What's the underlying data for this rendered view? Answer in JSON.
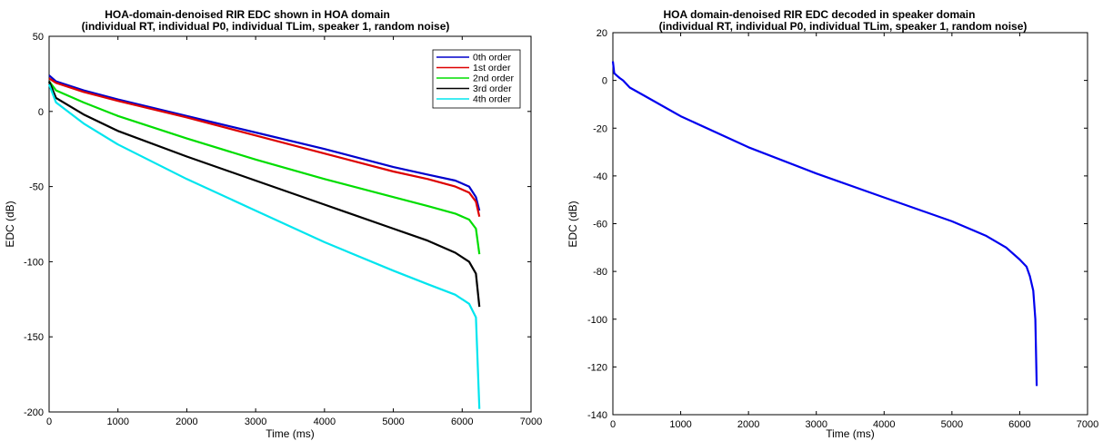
{
  "chart_data": [
    {
      "type": "line",
      "title": "HOA-domain-denoised RIR EDC shown in HOA domain",
      "subtitle": "(individual RT, individual P0, individual TLim, speaker 1, random noise)",
      "xlabel": "Time (ms)",
      "ylabel": "EDC (dB)",
      "xlim": [
        0,
        7000
      ],
      "ylim": [
        -200,
        50
      ],
      "xticks": [
        0,
        1000,
        2000,
        3000,
        4000,
        5000,
        6000,
        7000
      ],
      "yticks": [
        -200,
        -150,
        -100,
        -50,
        0,
        50
      ],
      "grid": false,
      "legend_position": "top-right",
      "series": [
        {
          "name": "0th order",
          "color": "#0000cc",
          "x": [
            0,
            100,
            500,
            1000,
            2000,
            3000,
            4000,
            5000,
            5500,
            5900,
            6100,
            6200,
            6250
          ],
          "y": [
            24,
            20,
            14,
            8,
            -3,
            -14,
            -25,
            -37,
            -42,
            -46,
            -50,
            -57,
            -66
          ]
        },
        {
          "name": "1st order",
          "color": "#dd0000",
          "x": [
            0,
            100,
            500,
            1000,
            2000,
            3000,
            4000,
            5000,
            5500,
            5900,
            6100,
            6200,
            6250
          ],
          "y": [
            22,
            19,
            13,
            7,
            -4,
            -16,
            -28,
            -40,
            -45,
            -50,
            -54,
            -60,
            -70
          ]
        },
        {
          "name": "2nd order",
          "color": "#00dd00",
          "x": [
            0,
            100,
            500,
            1000,
            2000,
            3000,
            4000,
            5000,
            5500,
            5900,
            6100,
            6200,
            6250
          ],
          "y": [
            20,
            14,
            6,
            -3,
            -18,
            -32,
            -45,
            -57,
            -63,
            -68,
            -72,
            -78,
            -95
          ]
        },
        {
          "name": "3rd order",
          "color": "#000000",
          "x": [
            0,
            100,
            500,
            1000,
            2000,
            3000,
            4000,
            5000,
            5500,
            5900,
            6100,
            6200,
            6250
          ],
          "y": [
            20,
            9,
            -2,
            -13,
            -30,
            -46,
            -62,
            -78,
            -86,
            -94,
            -100,
            -108,
            -130
          ]
        },
        {
          "name": "4th order",
          "color": "#00e5ee",
          "x": [
            0,
            100,
            500,
            1000,
            2000,
            3000,
            4000,
            5000,
            5500,
            5900,
            6100,
            6200,
            6250
          ],
          "y": [
            18,
            6,
            -8,
            -22,
            -45,
            -66,
            -87,
            -106,
            -115,
            -122,
            -128,
            -137,
            -198
          ]
        }
      ]
    },
    {
      "type": "line",
      "title": "HOA domain-denoised RIR EDC decoded in speaker domain",
      "subtitle": "(individual RT, individual P0, individual TLim, speaker 1, random noise)",
      "xlabel": "Time (ms)",
      "ylabel": "EDC (dB)",
      "xlim": [
        0,
        7000
      ],
      "ylim": [
        -140,
        20
      ],
      "xticks": [
        0,
        1000,
        2000,
        3000,
        4000,
        5000,
        6000,
        7000
      ],
      "yticks": [
        -140,
        -120,
        -100,
        -80,
        -60,
        -40,
        -20,
        0,
        20
      ],
      "grid": false,
      "series": [
        {
          "color": "#0000ee",
          "x": [
            0,
            20,
            60,
            100,
            150,
            250,
            500,
            1000,
            2000,
            3000,
            4000,
            5000,
            5500,
            5800,
            6000,
            6100,
            6150,
            6200,
            6230,
            6250
          ],
          "y": [
            8,
            3,
            2,
            1,
            0,
            -3,
            -7,
            -15,
            -28,
            -39,
            -49,
            -59,
            -65,
            -70,
            -75,
            -78,
            -82,
            -88,
            -100,
            -128
          ]
        }
      ]
    }
  ]
}
